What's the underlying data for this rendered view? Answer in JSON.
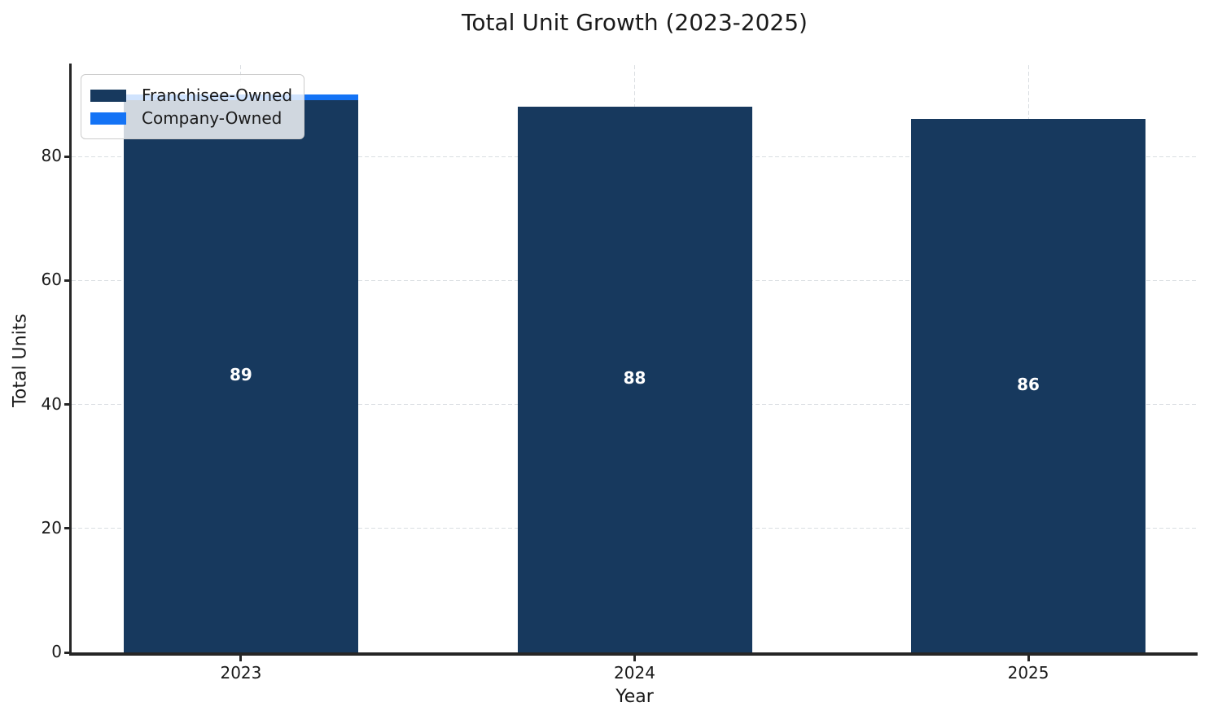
{
  "chart_data": {
    "type": "bar",
    "stacked": true,
    "title": "Total Unit Growth (2023-2025)",
    "xlabel": "Year",
    "ylabel": "Total Units",
    "categories": [
      "2023",
      "2024",
      "2025"
    ],
    "series": [
      {
        "name": "Franchisee-Owned",
        "color": "#17395E",
        "values": [
          89,
          88,
          86
        ]
      },
      {
        "name": "Company-Owned",
        "color": "#1473F5",
        "values": [
          1,
          0,
          0
        ]
      }
    ],
    "bar_labels": [
      "89",
      "88",
      "86"
    ],
    "bar_label_color": "#ffffff",
    "yticks": [
      0,
      20,
      40,
      60,
      80
    ],
    "ylim": [
      0,
      95
    ],
    "grid": true,
    "grid_style": "dashed",
    "grid_color": "#dadee2",
    "spine_color": "#262626",
    "legend_position": "upper-left",
    "legend_background": "rgba(255,255,255,0.8)"
  }
}
